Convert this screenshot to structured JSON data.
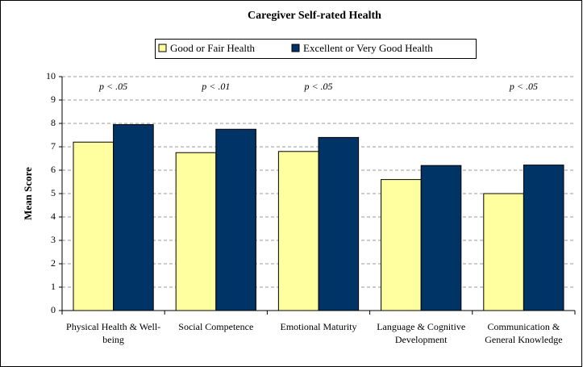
{
  "chart_data": {
    "type": "bar",
    "title": "Caregiver Self-rated Health",
    "ylabel": "Mean Score",
    "categories": [
      "Physical Health & Well-being",
      "Social Competence",
      "Emotional Maturity",
      "Language & Cognitive Development",
      "Communication & General Knowledge"
    ],
    "series": [
      {
        "name": "Good or Fair Health",
        "color": "#ffffa0",
        "values": [
          7.2,
          6.75,
          6.8,
          5.6,
          5.0
        ]
      },
      {
        "name": "Excellent or Very Good Health",
        "color": "#003366",
        "values": [
          7.95,
          7.75,
          7.4,
          6.2,
          6.22
        ]
      }
    ],
    "annotations": [
      "p < .05",
      "p < .01",
      "p < .05",
      null,
      "p < .05"
    ],
    "ylim": [
      0,
      10
    ],
    "yticks": [
      0,
      1,
      2,
      3,
      4,
      5,
      6,
      7,
      8,
      9,
      10
    ],
    "grid": true,
    "legend": "top"
  }
}
